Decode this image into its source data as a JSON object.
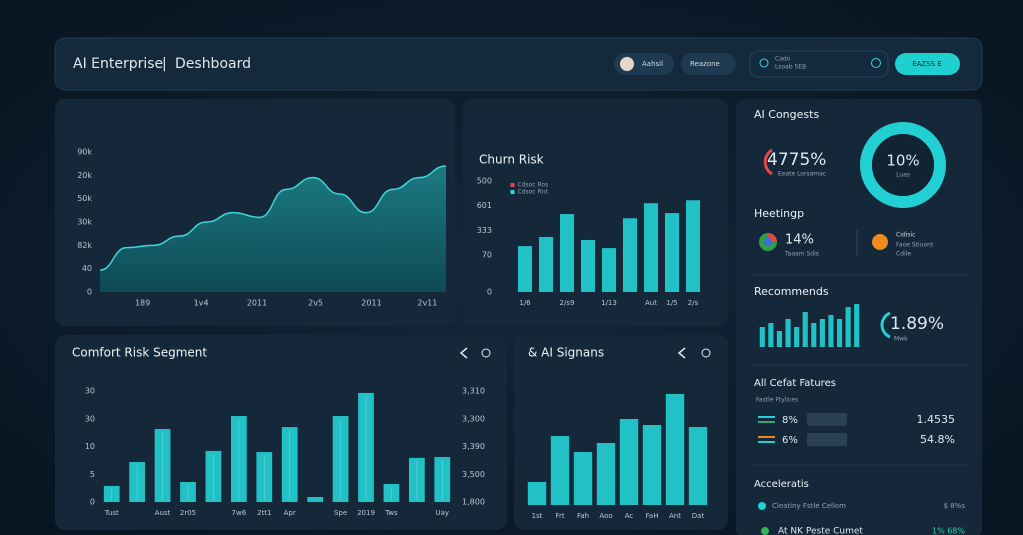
{
  "header": {
    "brand": "AI Enterprise",
    "separator": "|",
    "title": "Deshboard",
    "user": "Aahsil",
    "button": "Reazone",
    "search_line1": "Cado",
    "search_line2": "Lsoab 5EB",
    "cta": "EAZSS E"
  },
  "area_chart": {
    "type": "area",
    "color": "#3fd6dc",
    "x": [
      0,
      1,
      2,
      3,
      4,
      5,
      6,
      7,
      8,
      9,
      10,
      11,
      12,
      13
    ],
    "values": [
      0.94,
      1.9,
      2.0,
      2.4,
      3.0,
      3.4,
      3.2,
      4.4,
      4.9,
      4.2,
      3.4,
      4.4,
      4.9,
      5.4
    ],
    "xlim": [
      0,
      13
    ],
    "ylim": [
      0,
      6
    ],
    "yticks": [
      {
        "value": 6,
        "label": "90k"
      },
      {
        "value": 5,
        "label": "20k"
      },
      {
        "value": 4,
        "label": "50k"
      },
      {
        "value": 3,
        "label": "30k"
      },
      {
        "value": 2,
        "label": "82k"
      },
      {
        "value": 1,
        "label": "40"
      },
      0
    ],
    "xticks": [
      {
        "value": 1.6,
        "label": "189"
      },
      {
        "value": 3.8,
        "label": "1v4"
      },
      {
        "value": 5.9,
        "label": "2011"
      },
      {
        "value": 8.1,
        "label": "2v5"
      },
      {
        "value": 10.2,
        "label": "2011"
      },
      {
        "value": 12.3,
        "label": "2v11"
      }
    ]
  },
  "churn_chart": {
    "type": "bar",
    "title": "Churn Risk",
    "color": "#22c9ce",
    "legend": [
      {
        "name": "Cdsoc Ros",
        "color": "#e0484a"
      },
      {
        "name": "Cdsoc Rnt",
        "color": "#2fd3d6"
      }
    ],
    "categories": [
      "1/6",
      null,
      "2/s9",
      null,
      "1/13",
      null,
      "Aut",
      "1/5",
      "2/s"
    ],
    "values": [
      1.86,
      2.23,
      3.16,
      2.11,
      1.78,
      2.99,
      3.6,
      3.2,
      3.72
    ],
    "ylim": [
      0,
      4.5
    ],
    "yticks": [
      0,
      {
        "value": 1.5,
        "label": "70"
      },
      {
        "value": 2.5,
        "label": "333"
      },
      {
        "value": 3.5,
        "label": "601"
      },
      {
        "value": 4.5,
        "label": "500"
      }
    ]
  },
  "segment_chart": {
    "type": "bar",
    "title": "Comfort Risk Segment",
    "color": "#22c9ce",
    "categories": [
      "Tust",
      null,
      "Aust",
      "2r05",
      null,
      "7w6",
      "2tt1",
      "Apr",
      null,
      "Spe",
      "2019",
      "Tws",
      null,
      "Uay"
    ],
    "values": [
      0.58,
      1.44,
      2.63,
      0.72,
      1.84,
      3.1,
      1.8,
      2.7,
      0.18,
      3.1,
      3.93,
      0.65,
      1.59,
      1.62
    ],
    "ylim": [
      0,
      4
    ],
    "yticks": [
      0,
      {
        "value": 1,
        "label": "5"
      },
      {
        "value": 2,
        "label": "10"
      },
      {
        "value": 3,
        "label": "30"
      },
      {
        "value": 4,
        "label": "30"
      }
    ],
    "y2lim": [
      0,
      4
    ],
    "y2ticks": [
      {
        "value": 0,
        "label": "1,800"
      },
      {
        "value": 1,
        "label": "3,500"
      },
      {
        "value": 2,
        "label": "3,390"
      },
      {
        "value": 3,
        "label": "3,300"
      },
      {
        "value": 4,
        "label": "3,310"
      }
    ]
  },
  "signals_chart": {
    "type": "bar",
    "title": "& AI Signans",
    "color": "#22c9ce",
    "categories": [
      "1st",
      "Frt",
      "Fah",
      "Aoo",
      "Ac",
      "FaH",
      "Ant",
      "Dat"
    ],
    "values": [
      23,
      69,
      53,
      62,
      86,
      80,
      111,
      78
    ],
    "ylim": [
      0,
      120
    ]
  },
  "side": {
    "congests": {
      "title": "AI Congests",
      "value": "4775%",
      "caption": "Eeate Lorsamac",
      "donut_value": "10%",
      "donut_caption": "Luas"
    },
    "meetings": {
      "title": "Heetingp",
      "value": "14%",
      "caption": "Taaam Sdis",
      "item_line1": "Cidisic",
      "item_line2": "Faoe Stiuont",
      "item_line3": "Cdile"
    },
    "recommends": {
      "title": "Recommends",
      "value": "1.89%",
      "caption": "Mwk",
      "color": "#22c9ce",
      "values": [
        20,
        24,
        16,
        28,
        20,
        35,
        24,
        28,
        32,
        28,
        40,
        43
      ],
      "ylim": [
        0,
        50
      ]
    },
    "features": {
      "title": "All Cefat Fatures",
      "caption": "Fastle Ftylices",
      "rows": [
        {
          "pct": "8%",
          "value": "1.4535"
        },
        {
          "pct": "6%",
          "value": "54.8%"
        }
      ]
    },
    "accelerates": {
      "title": "Acceleratis",
      "rows": [
        {
          "label": "Cleatiny Fstle Cellom",
          "value": "$ 8%s"
        },
        {
          "label": "At NK Peste Cumet",
          "value": "1% 68%"
        }
      ]
    }
  }
}
